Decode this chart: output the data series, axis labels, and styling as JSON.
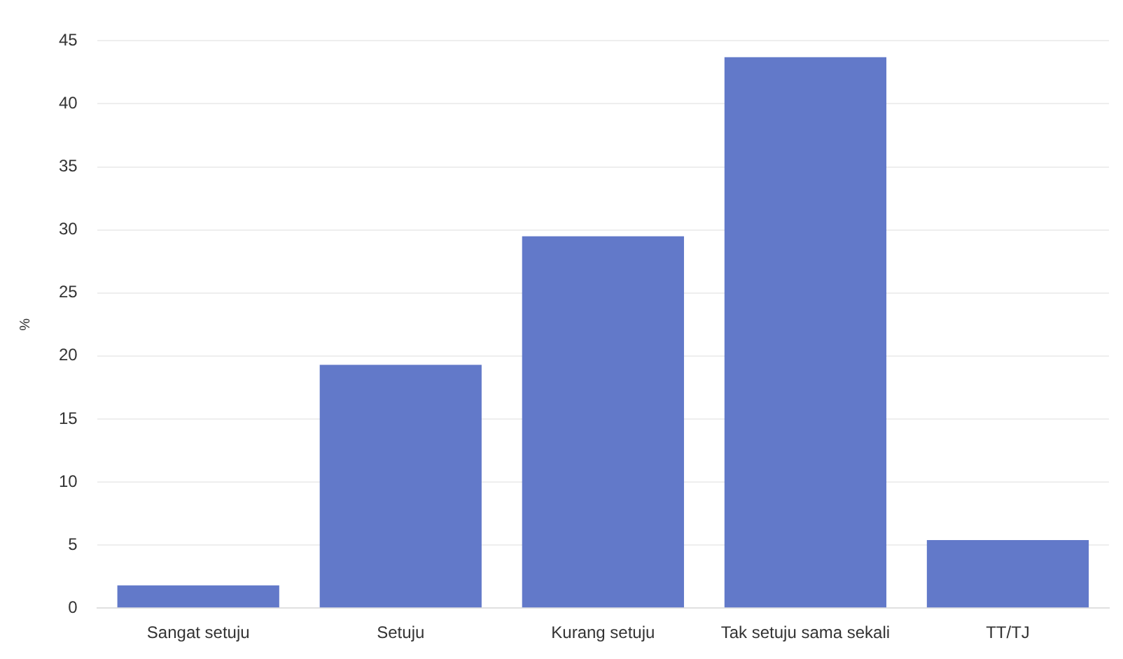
{
  "chart_data": {
    "type": "bar",
    "ylabel": "%",
    "categories": [
      "Sangat setuju",
      "Setuju",
      "Kurang setuju",
      "Tak setuju sama sekali",
      "TT/TJ"
    ],
    "values": [
      1.8,
      19.3,
      29.5,
      43.7,
      5.4
    ],
    "color": "#6279c9",
    "ylim": [
      0,
      45
    ],
    "yticks": [
      0,
      5,
      10,
      15,
      20,
      25,
      30,
      35,
      40,
      45
    ],
    "grid": "y",
    "legend": false
  }
}
